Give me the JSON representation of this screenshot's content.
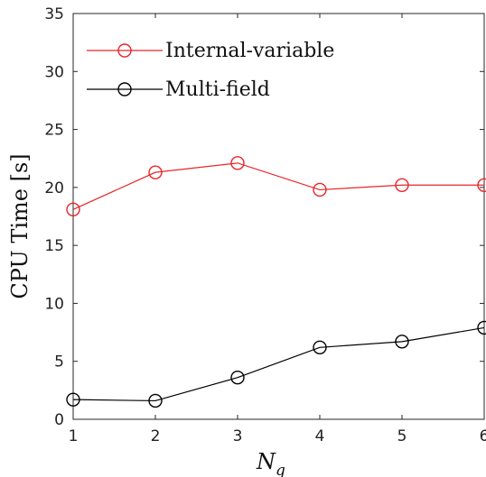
{
  "chart_data": {
    "type": "line",
    "title": "",
    "xlabel": "N",
    "xlabel_subscript": "q",
    "ylabel": "CPU Time [s]",
    "xlim": [
      1,
      6
    ],
    "ylim": [
      0,
      35
    ],
    "xticks": [
      1,
      2,
      3,
      4,
      5,
      6
    ],
    "yticks": [
      0,
      5,
      10,
      15,
      20,
      25,
      30,
      35
    ],
    "grid": false,
    "legend_position": "top-left",
    "x": [
      1,
      2,
      3,
      4,
      5,
      6
    ],
    "series": [
      {
        "name": "Internal-variable",
        "color": "#e8262a",
        "marker": "circle",
        "values": [
          18.1,
          21.3,
          22.1,
          19.8,
          20.2,
          20.2
        ]
      },
      {
        "name": "Multi-field",
        "color": "#000000",
        "marker": "circle",
        "values": [
          1.7,
          1.6,
          3.6,
          6.2,
          6.7,
          7.9
        ]
      }
    ]
  }
}
